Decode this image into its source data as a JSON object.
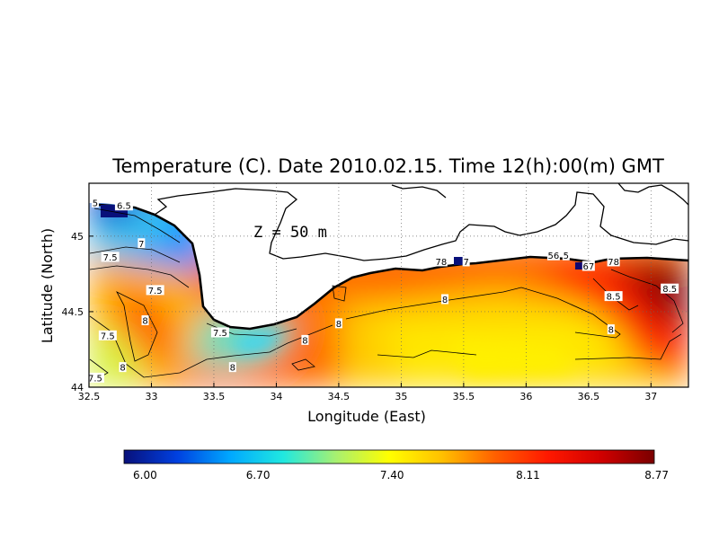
{
  "title": "Temperature (C). Date 2010.02.15. Time 12(h):00(m) GMT",
  "depth_label": "Z = 50 m",
  "xlabel": "Longitude (East)",
  "ylabel": "Latitude (North)",
  "xticks": [
    "32.5",
    "33",
    "33.5",
    "34",
    "34.5",
    "35",
    "35.5",
    "36",
    "36.5",
    "37"
  ],
  "yticks": [
    "44",
    "44.5",
    "45"
  ],
  "xlim": [
    32.5,
    37.3
  ],
  "ylim": [
    44.0,
    45.35
  ],
  "colorbar": {
    "ticks": [
      "6.00",
      "6.70",
      "7.40",
      "8.11",
      "8.77"
    ],
    "range": [
      6.0,
      8.77
    ],
    "colors": [
      "#08107a",
      "#0040e0",
      "#00a8ff",
      "#20e8e0",
      "#a8f070",
      "#ffff00",
      "#ffc000",
      "#ff6000",
      "#ff1800",
      "#d00000",
      "#7a0000"
    ]
  },
  "contour_labels": [
    {
      "text": "5",
      "lon": 32.55,
      "lat": 45.22
    },
    {
      "text": "6.5",
      "lon": 32.78,
      "lat": 45.2
    },
    {
      "text": "7",
      "lon": 32.92,
      "lat": 44.95
    },
    {
      "text": "7.5",
      "lon": 32.67,
      "lat": 44.86
    },
    {
      "text": "7.5",
      "lon": 33.03,
      "lat": 44.64
    },
    {
      "text": "8",
      "lon": 32.95,
      "lat": 44.44
    },
    {
      "text": "7.5",
      "lon": 32.65,
      "lat": 44.34
    },
    {
      "text": "8",
      "lon": 32.77,
      "lat": 44.13
    },
    {
      "text": "7.5",
      "lon": 32.55,
      "lat": 44.06
    },
    {
      "text": "7.5",
      "lon": 33.55,
      "lat": 44.36
    },
    {
      "text": "8",
      "lon": 33.65,
      "lat": 44.13
    },
    {
      "text": "8",
      "lon": 34.23,
      "lat": 44.31
    },
    {
      "text": "8",
      "lon": 34.5,
      "lat": 44.42
    },
    {
      "text": "78",
      "lon": 35.32,
      "lat": 44.83
    },
    {
      "text": "7",
      "lon": 35.52,
      "lat": 44.83
    },
    {
      "text": "8",
      "lon": 35.35,
      "lat": 44.58
    },
    {
      "text": "56",
      "lon": 36.22,
      "lat": 44.87
    },
    {
      "text": "5",
      "lon": 36.32,
      "lat": 44.87
    },
    {
      "text": "67",
      "lon": 36.5,
      "lat": 44.8
    },
    {
      "text": "78",
      "lon": 36.7,
      "lat": 44.83
    },
    {
      "text": "8.5",
      "lon": 36.7,
      "lat": 44.6
    },
    {
      "text": "8.5",
      "lon": 37.15,
      "lat": 44.65
    },
    {
      "text": "8",
      "lon": 36.68,
      "lat": 44.38
    }
  ]
}
